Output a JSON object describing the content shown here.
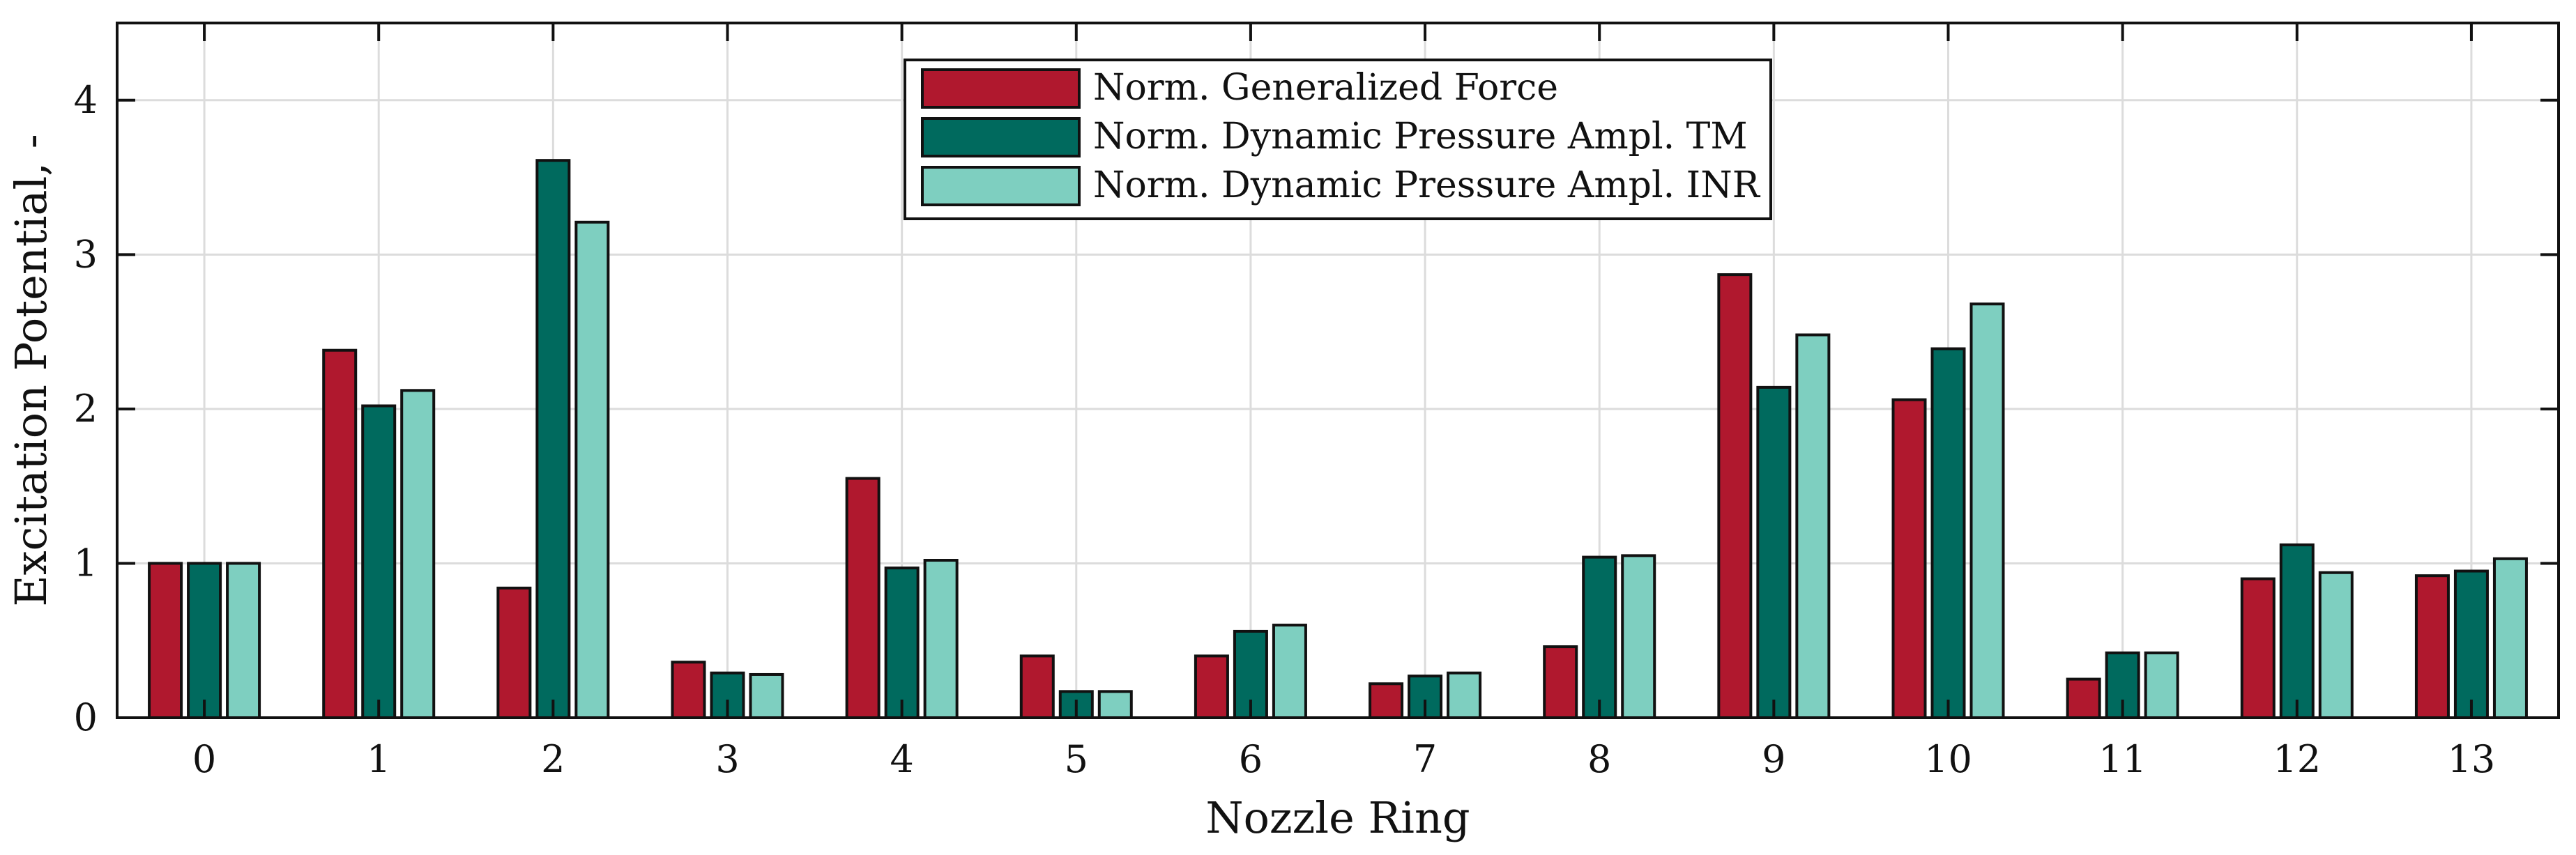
{
  "chart_data": {
    "type": "bar",
    "title": "",
    "xlabel": "Nozzle Ring",
    "ylabel": "Excitation Potential, -",
    "categories": [
      "0",
      "1",
      "2",
      "3",
      "4",
      "5",
      "6",
      "7",
      "8",
      "9",
      "10",
      "11",
      "12",
      "13"
    ],
    "ylim": [
      0,
      4.5
    ],
    "yticks": [
      0,
      1,
      2,
      3,
      4
    ],
    "grid": true,
    "legend_position": "top-center",
    "series": [
      {
        "name": "Norm. Generalized Force",
        "color": "#B0182E",
        "values": [
          1.0,
          2.38,
          0.84,
          0.36,
          1.55,
          0.4,
          0.4,
          0.22,
          0.46,
          2.87,
          2.06,
          0.25,
          0.9,
          0.92
        ]
      },
      {
        "name": "Norm. Dynamic Pressure Ampl. TM",
        "color": "#006A5E",
        "values": [
          1.0,
          2.02,
          3.61,
          0.29,
          0.97,
          0.17,
          0.56,
          0.27,
          1.04,
          2.14,
          2.39,
          0.42,
          1.12,
          0.95
        ]
      },
      {
        "name": "Norm. Dynamic Pressure Ampl. INR",
        "color": "#7ECFC0",
        "values": [
          1.0,
          2.12,
          3.21,
          0.28,
          1.02,
          0.17,
          0.6,
          0.29,
          1.05,
          2.48,
          2.68,
          0.42,
          0.94,
          1.03
        ]
      }
    ]
  }
}
